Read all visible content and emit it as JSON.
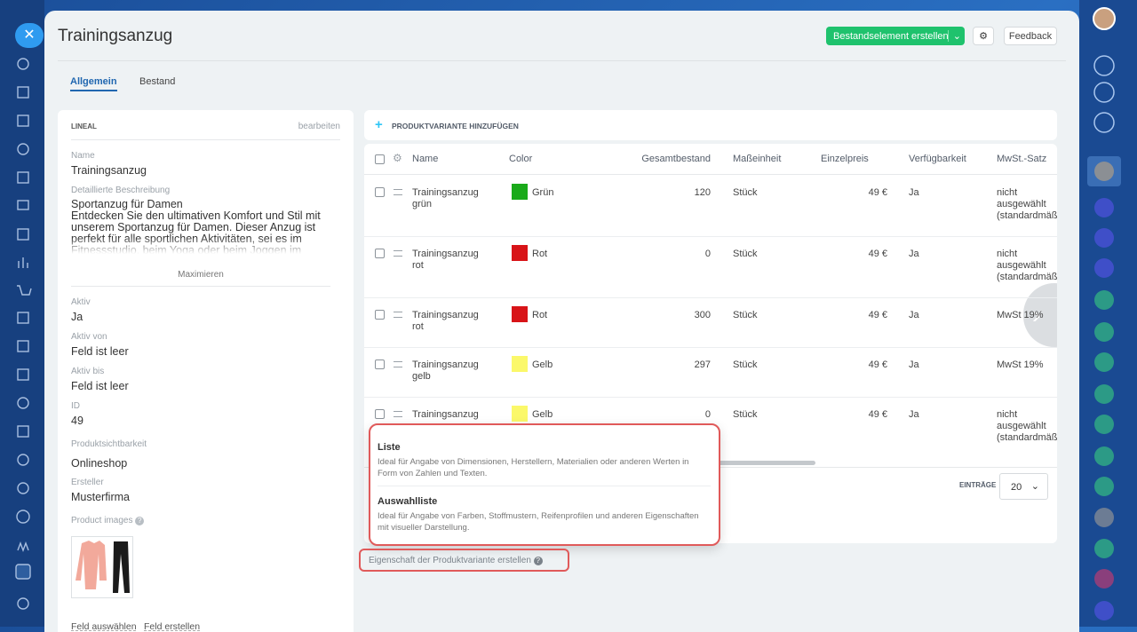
{
  "header": {
    "title": "Trainingsanzug",
    "create_button": "Bestandselement erstellen",
    "feedback": "Feedback"
  },
  "tabs": [
    "Allgemein",
    "Bestand"
  ],
  "left_panel": {
    "section": "LINEAL",
    "edit": "bearbeiten",
    "name_label": "Name",
    "name_value": "Trainingsanzug",
    "description_label": "Detaillierte Beschreibung",
    "description": "Sportanzug für Damen\nEntdecken Sie den ultimativen Komfort und Stil mit unserem Sportanzug für Damen. Dieser Anzug ist perfekt für alle sportlichen Aktivitäten, sei es im Fitnessstudio, beim Yoga oder beim Joggen im Freien.",
    "maximize": "Maximieren",
    "fields": [
      {
        "label": "Aktiv",
        "value": "Ja"
      },
      {
        "label": "Aktiv von",
        "value": "Feld ist leer"
      },
      {
        "label": "Aktiv bis",
        "value": "Feld ist leer"
      },
      {
        "label": "ID",
        "value": "49"
      },
      {
        "label": "Produktsichtbarkeit",
        "value": "Onlineshop"
      },
      {
        "label": "Ersteller",
        "value": "Musterfirma"
      }
    ],
    "images_label": "Product images",
    "links": [
      "Feld auswählen",
      "Feld erstellen"
    ]
  },
  "variants": {
    "add": "PRODUKTVARIANTE HINZUFÜGEN",
    "columns": [
      "Name",
      "Color",
      "Gesamtbestand",
      "Maßeinheit",
      "Einzelpreis",
      "Verfügbarkeit",
      "MwSt.-Satz"
    ],
    "rows": [
      {
        "name": "Trainingsanzug grün",
        "color": "Grün",
        "swatch": "#1aaa1a",
        "stock": 120,
        "unit": "Stück",
        "price": "49 €",
        "available": "Ja",
        "vat": "nicht ausgewählt (standardmäß"
      },
      {
        "name": "Trainingsanzug rot",
        "color": "Rot",
        "swatch": "#d81418",
        "stock": 0,
        "unit": "Stück",
        "price": "49 €",
        "available": "Ja",
        "vat": "nicht ausgewählt (standardmäß"
      },
      {
        "name": "Trainingsanzug rot",
        "color": "Rot",
        "swatch": "#d81418",
        "stock": 300,
        "unit": "Stück",
        "price": "49 €",
        "available": "Ja",
        "vat": "MwSt 19%"
      },
      {
        "name": "Trainingsanzug gelb",
        "color": "Gelb",
        "swatch": "#fbf86a",
        "stock": 297,
        "unit": "Stück",
        "price": "49 €",
        "available": "Ja",
        "vat": "MwSt 19%"
      },
      {
        "name": "Trainingsanzug",
        "color": "Gelb",
        "swatch": "#fbf86a",
        "stock": 0,
        "unit": "Stück",
        "price": "49 €",
        "available": "Ja",
        "vat": "nicht ausgewählt (standardmäß"
      }
    ],
    "entries_label": "EINTRÄGE",
    "page_size": "20"
  },
  "popup": [
    {
      "title": "Liste",
      "text": "Ideal für Angabe von Dimensionen, Herstellern, Materialien oder anderen Werten in Form von Zahlen und Texten."
    },
    {
      "title": "Auswahlliste",
      "text": "Ideal für Angabe von Farben, Stoffmustern, Reifenprofilen und anderen Eigenschaften mit visueller Darstellung."
    }
  ],
  "create_property": "Eigenschaft der Produktvariante erstellen"
}
